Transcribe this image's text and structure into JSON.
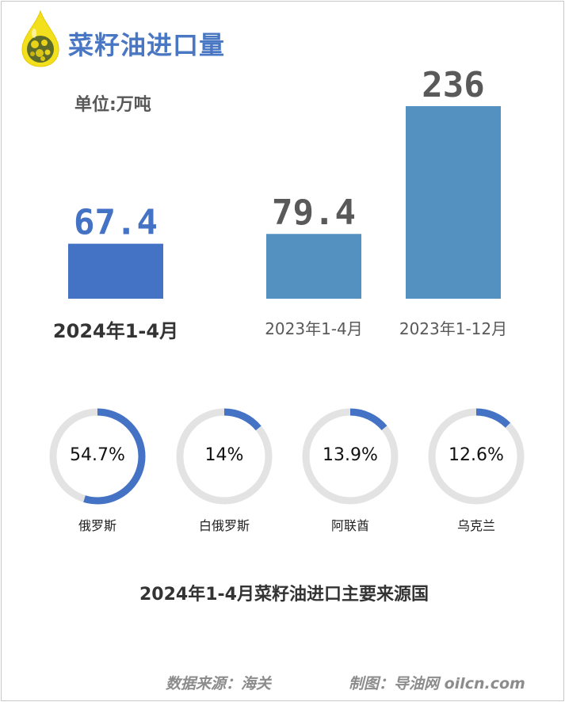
{
  "header": {
    "title": "菜籽油进口量",
    "unit_label": "单位:万吨"
  },
  "chart_data": [
    {
      "type": "bar",
      "categories": [
        "2024年1-4月",
        "2023年1-4月",
        "2023年1-12月"
      ],
      "values": [
        67.4,
        79.4,
        236
      ],
      "value_labels": [
        "67.4",
        "79.4",
        "236"
      ],
      "title": "菜籽油进口量",
      "ylabel": "单位:万吨",
      "ylim": [
        0,
        236
      ],
      "grid": false,
      "colors": [
        "#4472c4",
        "#5591c0",
        "#5591c0"
      ],
      "highlight_category": "2024年1-4月"
    },
    {
      "type": "pie",
      "style": "donut",
      "title": "2024年1-4月菜籽油进口主要来源国",
      "categories": [
        "俄罗斯",
        "白俄罗斯",
        "阿联酋",
        "乌克兰"
      ],
      "values": [
        54.7,
        14,
        13.9,
        12.6
      ],
      "value_labels": [
        "54.7%",
        "14%",
        "13.9%",
        "12.6%"
      ],
      "track_color": "#e3e3e3",
      "fill_color": "#4472c4"
    }
  ],
  "footer": {
    "source": "数据来源：海关",
    "credit": "制图：导油网 oilcn.com"
  },
  "colors": {
    "title_blue": "#4a77c4",
    "value_blue": "#4472c4",
    "value_gray": "#595959",
    "logo_yellow": "#f3e01c"
  },
  "icons": {
    "logo": "oil-drop-rapeseed-logo"
  }
}
